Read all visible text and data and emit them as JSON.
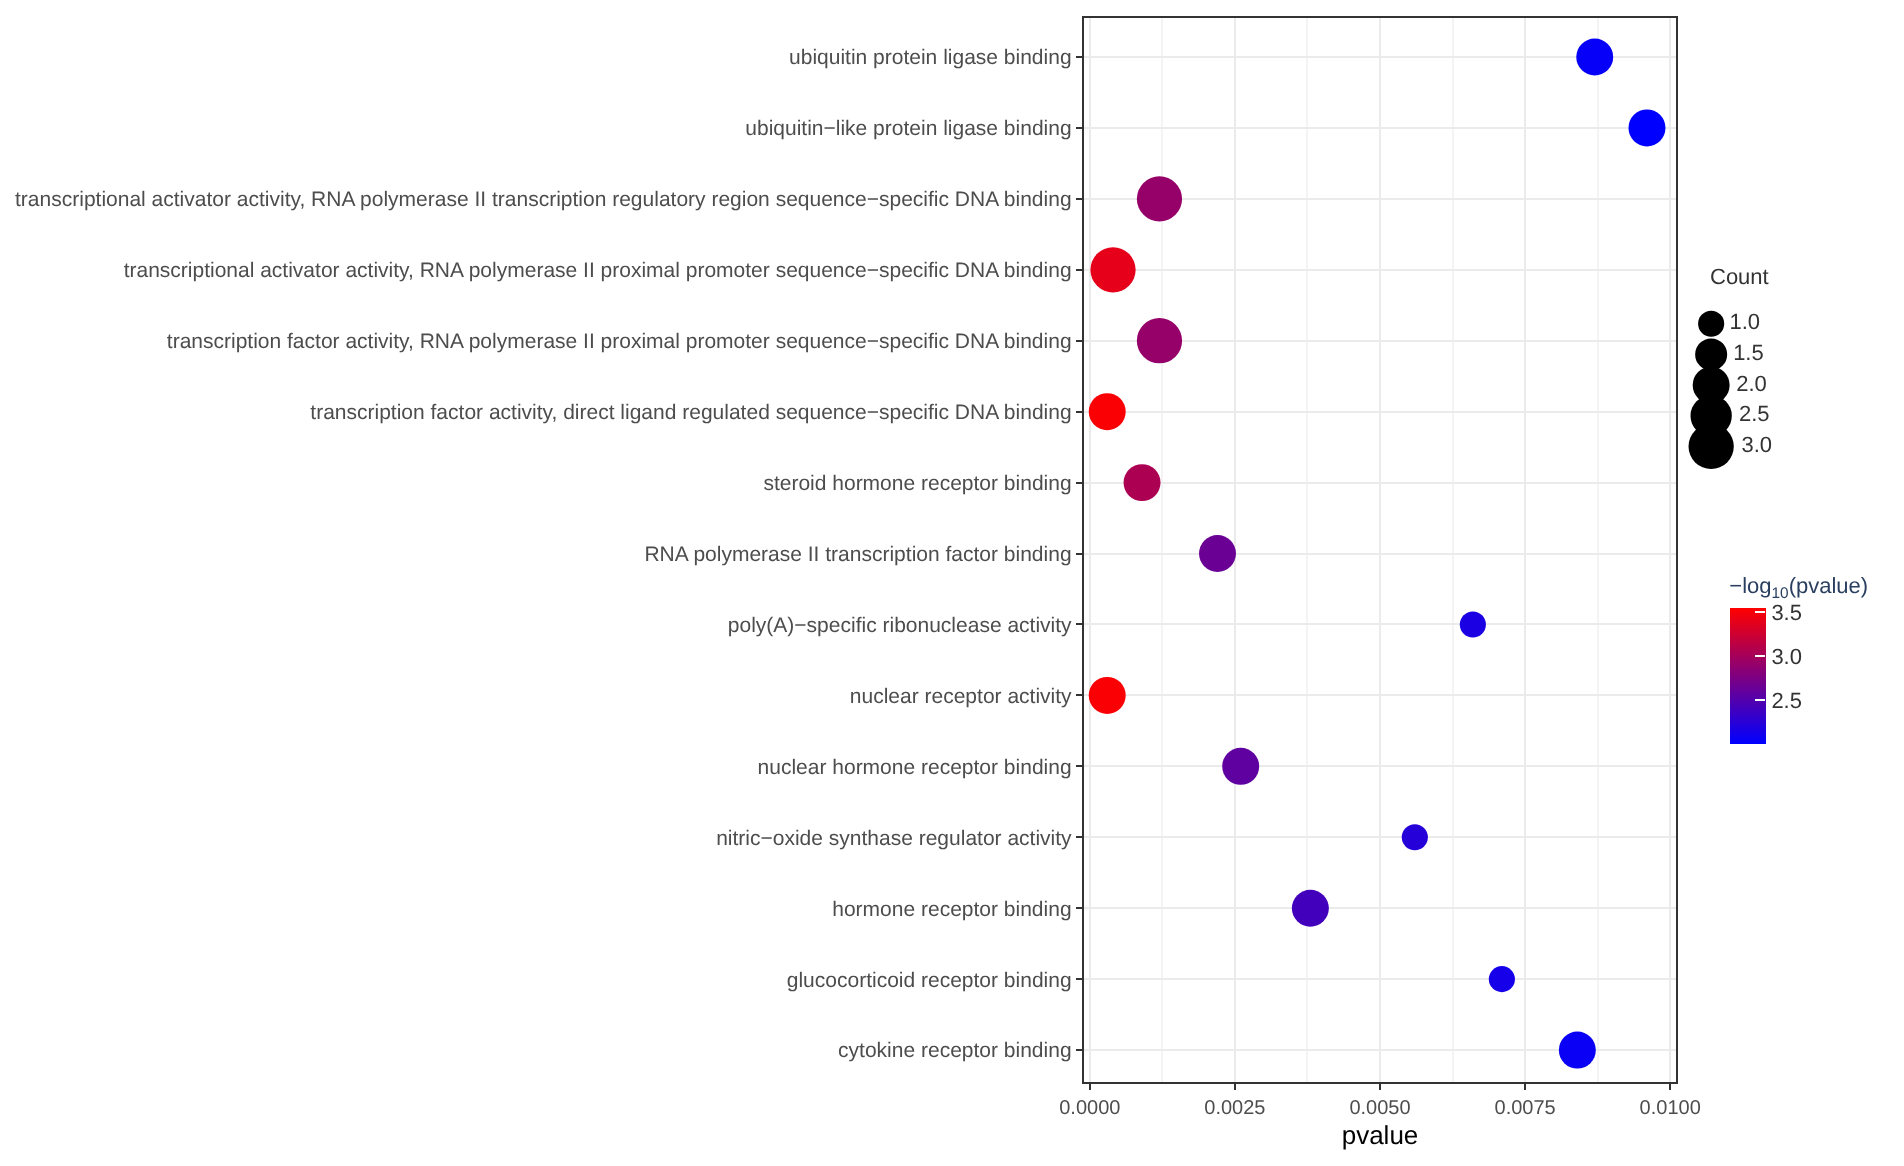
{
  "chart_data": {
    "type": "bubble",
    "xlabel": "pvalue",
    "legend_title": "Count",
    "clabel": "−log$_{10}$(pvalue)",
    "categories": [
      "ubiquitin protein ligase binding",
      "ubiquitin−like protein ligase binding",
      "transcriptional activator activity, RNA polymerase II transcription regulatory region sequence−specific DNA binding",
      "transcriptional activator activity, RNA polymerase II proximal promoter sequence−specific DNA binding",
      "transcription factor activity, RNA polymerase II proximal promoter sequence−specific DNA binding",
      "transcription factor activity, direct ligand regulated sequence−specific DNA binding",
      "steroid hormone receptor binding",
      "RNA polymerase II transcription factor binding",
      "poly(A)−specific ribonuclease activity",
      "nuclear receptor activity",
      "nuclear hormone receptor binding",
      "nitric−oxide synthase regulator activity",
      "hormone receptor binding",
      "glucocorticoid receptor binding",
      "cytokine receptor binding"
    ],
    "values": [
      0.0087,
      0.0096,
      0.0012,
      0.0004,
      0.0012,
      0.0003,
      0.0009,
      0.0022,
      0.0066,
      0.0003,
      0.0026,
      0.0056,
      0.0038,
      0.0071,
      0.0084
    ],
    "sizes": [
      2,
      2,
      3,
      3,
      3,
      2,
      2,
      2,
      1,
      2,
      2,
      1,
      2,
      1,
      2
    ],
    "cvalues": [
      2.06,
      2.02,
      2.92,
      3.4,
      2.92,
      3.52,
      3.05,
      2.66,
      2.18,
      3.52,
      2.59,
      2.25,
      2.42,
      2.15,
      2.08
    ],
    "size_legend": [
      {
        "value": 1,
        "label": "1.0"
      },
      {
        "value": 1.5,
        "label": "1.5"
      },
      {
        "value": 2,
        "label": "2.0"
      },
      {
        "value": 2.5,
        "label": "2.5"
      },
      {
        "value": 3,
        "label": "3.0"
      }
    ],
    "orientation": "horizontal",
    "clim": [
      2.02,
      3.55
    ],
    "cticks": [
      {
        "value": 2.5,
        "label": "2.5"
      },
      {
        "value": 3.0,
        "label": "3.0"
      },
      {
        "value": 3.5,
        "label": "3.5"
      }
    ],
    "xlim": [
      -0.0001,
      0.0101
    ],
    "xticks": [
      {
        "value": 0,
        "label": "0.0000"
      },
      {
        "value": 0.0025,
        "label": "0.0025"
      },
      {
        "value": 0.005,
        "label": "0.0050"
      },
      {
        "value": 0.0075,
        "label": "0.0075"
      },
      {
        "value": 0.01,
        "label": "0.0100"
      }
    ],
    "grid": true
  }
}
